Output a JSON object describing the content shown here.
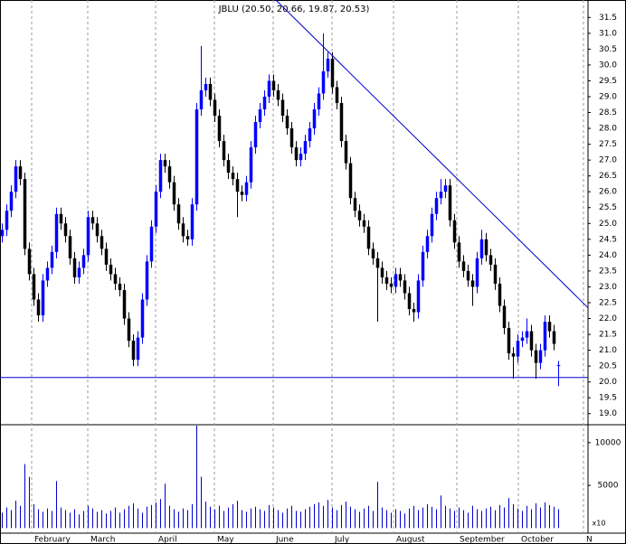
{
  "chart_data": [
    {
      "type": "candlestick",
      "title": "JBLU (20.50, 20.66, 19.87, 20.53)",
      "up_color": "#0000ff",
      "down_color": "#000000",
      "xlim": [
        0,
        130
      ],
      "xticks": [
        {
          "value": 7,
          "label": "February"
        },
        {
          "value": 19.4,
          "label": "March"
        },
        {
          "value": 34.4,
          "label": "April"
        },
        {
          "value": 47.4,
          "label": "May"
        },
        {
          "value": 60.4,
          "label": "June"
        },
        {
          "value": 73.4,
          "label": "July"
        },
        {
          "value": 87,
          "label": "August"
        },
        {
          "value": 101,
          "label": "September"
        },
        {
          "value": 114.6,
          "label": "October"
        },
        {
          "value": 129,
          "label": "N"
        }
      ],
      "ylim": [
        18.65,
        32.05
      ],
      "yticks": [
        {
          "value": 19,
          "label": "19.0"
        },
        19.5,
        {
          "value": 20,
          "label": "20.0"
        },
        20.5,
        {
          "value": 21,
          "label": "21.0"
        },
        21.5,
        {
          "value": 22,
          "label": "22.0"
        },
        22.5,
        {
          "value": 23,
          "label": "23.0"
        },
        23.5,
        {
          "value": 24,
          "label": "24.0"
        },
        24.5,
        {
          "value": 25,
          "label": "25.0"
        },
        25.5,
        {
          "value": 26,
          "label": "26.0"
        },
        26.5,
        {
          "value": 27,
          "label": "27.0"
        },
        27.5,
        {
          "value": 28,
          "label": "28.0"
        },
        28.5,
        {
          "value": 29,
          "label": "29.0"
        },
        29.5,
        {
          "value": 30,
          "label": "30.0"
        },
        30.5,
        {
          "value": 31,
          "label": "31.0"
        },
        31.5
      ],
      "open": [
        24.6,
        24.8,
        25.4,
        26.0,
        26.8,
        26.4,
        24.2,
        23.4,
        22.6,
        22.1,
        23.2,
        23.6,
        24.1,
        25.3,
        25.0,
        24.6,
        23.9,
        23.3,
        23.6,
        24.0,
        25.2,
        25.0,
        24.6,
        24.2,
        23.7,
        23.4,
        23.1,
        22.9,
        22.0,
        21.3,
        20.7,
        21.4,
        22.6,
        23.8,
        24.9,
        26.0,
        27.0,
        26.8,
        26.3,
        25.6,
        25.0,
        24.6,
        24.5,
        25.6,
        28.6,
        29.2,
        29.4,
        28.9,
        28.4,
        27.6,
        27.0,
        26.6,
        26.4,
        26.0,
        25.9,
        26.3,
        27.4,
        28.2,
        28.6,
        29.0,
        29.5,
        29.2,
        28.9,
        28.4,
        28.0,
        27.4,
        27.0,
        27.2,
        27.6,
        28.0,
        28.6,
        29.1,
        29.8,
        30.2,
        29.3,
        28.8,
        27.6,
        26.9,
        25.8,
        25.4,
        25.1,
        24.9,
        24.2,
        23.9,
        23.6,
        23.3,
        23.1,
        23.0,
        23.4,
        23.2,
        22.8,
        22.3,
        22.2,
        23.2,
        24.1,
        24.6,
        25.3,
        25.8,
        26.0,
        26.2,
        25.1,
        24.4,
        23.8,
        23.5,
        23.2,
        23.0,
        23.9,
        24.5,
        24.0,
        23.7,
        23.1,
        22.4,
        21.7,
        20.9,
        20.8,
        21.3,
        21.4,
        21.6,
        21.0,
        20.6,
        21.0,
        21.9,
        21.6,
        20.5
      ],
      "high": [
        25.0,
        25.6,
        26.2,
        27.0,
        27.0,
        26.6,
        24.4,
        23.6,
        22.8,
        23.4,
        23.8,
        24.3,
        25.5,
        25.5,
        25.2,
        24.8,
        24.1,
        23.8,
        24.2,
        25.4,
        25.4,
        25.2,
        24.8,
        24.4,
        23.9,
        23.6,
        23.3,
        23.1,
        22.2,
        21.5,
        21.6,
        22.8,
        24.0,
        25.1,
        26.2,
        27.2,
        27.2,
        27.0,
        26.5,
        25.8,
        25.2,
        24.8,
        25.8,
        28.8,
        30.6,
        29.6,
        29.6,
        29.1,
        28.6,
        27.8,
        27.2,
        26.8,
        26.6,
        26.2,
        26.5,
        27.6,
        28.4,
        28.8,
        29.2,
        29.7,
        29.7,
        29.4,
        29.1,
        28.6,
        28.2,
        27.6,
        27.4,
        27.8,
        28.2,
        28.8,
        29.3,
        31.0,
        30.4,
        30.4,
        29.5,
        29.0,
        27.8,
        27.1,
        26.0,
        25.6,
        25.3,
        25.1,
        24.4,
        24.1,
        23.8,
        23.5,
        23.3,
        23.6,
        23.6,
        23.4,
        23.0,
        22.5,
        23.4,
        24.3,
        24.8,
        25.5,
        26.0,
        26.4,
        26.4,
        26.4,
        25.3,
        24.6,
        24.0,
        23.7,
        23.4,
        24.1,
        24.8,
        24.7,
        24.2,
        23.9,
        23.3,
        22.6,
        21.9,
        21.1,
        21.5,
        21.6,
        22.0,
        21.8,
        21.2,
        21.2,
        22.1,
        22.1,
        21.8,
        20.66
      ],
      "low": [
        24.4,
        24.6,
        25.2,
        25.8,
        26.2,
        24.0,
        23.2,
        22.4,
        21.9,
        21.9,
        23.0,
        23.4,
        23.9,
        24.8,
        24.4,
        23.7,
        23.1,
        23.1,
        23.4,
        23.8,
        24.8,
        24.4,
        24.0,
        23.5,
        23.2,
        22.9,
        22.7,
        21.8,
        21.1,
        20.5,
        20.5,
        21.2,
        22.4,
        23.6,
        24.7,
        25.8,
        26.6,
        26.1,
        25.4,
        24.8,
        24.4,
        24.3,
        24.3,
        25.4,
        28.4,
        29.0,
        28.7,
        28.2,
        27.4,
        26.8,
        26.4,
        26.2,
        25.2,
        25.7,
        25.7,
        26.1,
        27.2,
        28.0,
        28.4,
        28.8,
        29.0,
        28.7,
        28.2,
        27.8,
        27.2,
        26.8,
        26.8,
        27.0,
        27.4,
        27.8,
        28.4,
        28.9,
        29.6,
        29.1,
        28.6,
        27.4,
        26.7,
        25.6,
        25.2,
        24.9,
        24.7,
        24.0,
        23.7,
        21.9,
        23.1,
        22.9,
        22.8,
        22.8,
        23.0,
        22.6,
        22.1,
        21.9,
        22.0,
        23.0,
        23.9,
        24.4,
        25.1,
        25.6,
        25.8,
        24.9,
        24.2,
        23.6,
        23.3,
        23.0,
        22.4,
        22.8,
        23.7,
        23.8,
        23.5,
        22.9,
        22.2,
        21.5,
        20.7,
        20.1,
        20.6,
        21.1,
        21.2,
        20.8,
        20.1,
        20.4,
        20.8,
        21.4,
        21.0,
        19.87
      ],
      "close": [
        24.8,
        25.4,
        26.0,
        26.8,
        26.4,
        24.2,
        23.4,
        22.6,
        22.1,
        23.2,
        23.6,
        24.1,
        25.3,
        25.0,
        24.6,
        23.9,
        23.3,
        23.6,
        24.0,
        25.2,
        25.0,
        24.6,
        24.2,
        23.7,
        23.4,
        23.1,
        22.9,
        22.0,
        21.3,
        20.7,
        21.4,
        22.6,
        23.8,
        24.9,
        26.0,
        27.0,
        26.8,
        26.3,
        25.6,
        25.0,
        24.6,
        24.5,
        25.6,
        28.6,
        29.2,
        29.4,
        28.9,
        28.4,
        27.6,
        27.0,
        26.6,
        26.4,
        26.0,
        25.9,
        26.3,
        27.4,
        28.2,
        28.6,
        29.0,
        29.5,
        29.2,
        28.9,
        28.4,
        28.0,
        27.4,
        27.0,
        27.2,
        27.6,
        28.0,
        28.6,
        29.1,
        29.8,
        30.2,
        29.3,
        28.8,
        27.6,
        26.9,
        25.8,
        25.4,
        25.1,
        24.9,
        24.2,
        23.9,
        23.6,
        23.3,
        23.1,
        23.0,
        23.4,
        23.2,
        22.8,
        22.3,
        22.2,
        23.2,
        24.1,
        24.6,
        25.3,
        25.8,
        26.0,
        26.2,
        25.1,
        24.4,
        23.8,
        23.5,
        23.2,
        23.0,
        23.9,
        24.5,
        24.0,
        23.7,
        23.1,
        22.4,
        21.7,
        20.9,
        20.8,
        21.3,
        21.4,
        21.6,
        21.0,
        20.6,
        21.0,
        21.9,
        21.6,
        21.2,
        20.53
      ],
      "lines": [
        {
          "color": "#0000cc",
          "x": [
            61,
            130
          ],
          "y": [
            32.05,
            22.34
          ]
        },
        {
          "color": "#0000cc",
          "x": [
            0,
            130
          ],
          "y": [
            20.14,
            20.14
          ]
        }
      ]
    },
    {
      "type": "volume",
      "color": "#0000cc",
      "multiplier_label": "x10",
      "xlim": [
        0,
        130
      ],
      "ylim": [
        -600,
        12100
      ],
      "yticks": [
        5000,
        10000
      ],
      "values": [
        1800,
        2400,
        2100,
        3200,
        2600,
        7500,
        6000,
        2800,
        2200,
        1900,
        2300,
        2000,
        5500,
        2400,
        2100,
        1800,
        2200,
        1600,
        2000,
        2600,
        2300,
        1900,
        2100,
        1700,
        2000,
        2400,
        1800,
        2200,
        2600,
        2900,
        2300,
        1800,
        2500,
        2700,
        3000,
        3400,
        5200,
        2600,
        2200,
        1900,
        2300,
        2100,
        2800,
        12000,
        6000,
        3100,
        2500,
        2200,
        2600,
        2000,
        2400,
        2800,
        3200,
        2100,
        1900,
        2300,
        2500,
        2200,
        2000,
        2700,
        2400,
        2100,
        1800,
        2300,
        2600,
        2000,
        1900,
        2200,
        2500,
        2800,
        3000,
        2600,
        3300,
        2400,
        2100,
        2700,
        3100,
        2500,
        2200,
        1900,
        2300,
        2600,
        2000,
        5400,
        2400,
        2100,
        1800,
        2200,
        2000,
        1700,
        2300,
        2600,
        2100,
        2400,
        2800,
        2500,
        2200,
        3800,
        2600,
        2300,
        2000,
        2400,
        2100,
        1800,
        2600,
        2200,
        2000,
        2300,
        2500,
        2100,
        2700,
        2400,
        3500,
        2800,
        2300,
        2000,
        2600,
        2200,
        2900,
        2400,
        3000,
        2700,
        2500,
        2200
      ]
    }
  ]
}
